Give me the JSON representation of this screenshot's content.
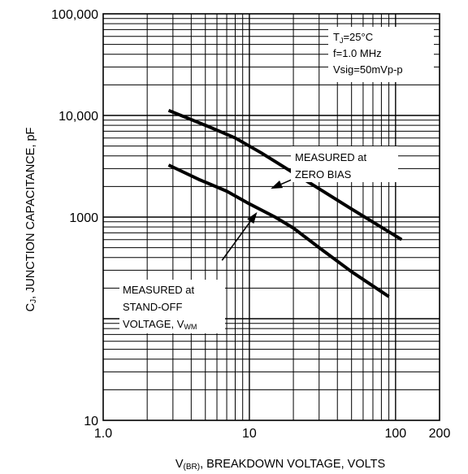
{
  "chart_data": {
    "type": "line",
    "title": "",
    "xlabel_parts": [
      "V",
      "(BR)",
      ", BREAKDOWN VOLTAGE, VOLTS"
    ],
    "ylabel_parts": [
      "C",
      "J",
      ", JUNCTION CAPACITANCE, pF"
    ],
    "x_scale": "log",
    "y_scale": "log",
    "xlim": [
      1,
      200
    ],
    "ylim": [
      10,
      100000
    ],
    "x_tick_labels": [
      {
        "v": 1,
        "label": "1.0"
      },
      {
        "v": 10,
        "label": "10"
      },
      {
        "v": 100,
        "label": "100"
      },
      {
        "v": 200,
        "label": "200"
      }
    ],
    "y_tick_labels": [
      {
        "v": 10,
        "label": "10"
      },
      {
        "v": 1000,
        "label": "1000"
      },
      {
        "v": 10000,
        "label": "10,000"
      },
      {
        "v": 100000,
        "label": "100,000"
      }
    ],
    "grid": true,
    "conditions": {
      "line1": [
        "T",
        "J",
        "=25°C"
      ],
      "line2": "f=1.0 MHz",
      "line3": "Vsig=50mVp-p"
    },
    "series": [
      {
        "label_lines": [
          "MEASURED at",
          "ZERO BIAS"
        ],
        "points": [
          [
            2.8,
            11200
          ],
          [
            5,
            8000
          ],
          [
            8,
            6000
          ],
          [
            12,
            4300
          ],
          [
            18,
            3000
          ],
          [
            30,
            1900
          ],
          [
            50,
            1200
          ],
          [
            110,
            600
          ]
        ]
      },
      {
        "label_lines": [
          "MEASURED at",
          "STAND-OFF",
          "VOLTAGE, V",
          "WM"
        ],
        "points": [
          [
            2.8,
            3250
          ],
          [
            4.5,
            2350
          ],
          [
            7,
            1800
          ],
          [
            10,
            1350
          ],
          [
            15,
            1000
          ],
          [
            20,
            780
          ],
          [
            30,
            500
          ],
          [
            50,
            290
          ],
          [
            90,
            165
          ]
        ]
      }
    ],
    "arrows": [
      {
        "from": [
          38,
          3550
        ],
        "to": [
          14,
          1900
        ]
      },
      {
        "from": [
          6.5,
          375
        ],
        "to": [
          11.3,
          1120
        ]
      }
    ],
    "colors": {
      "line": "#000000",
      "grid": "#000000"
    }
  }
}
